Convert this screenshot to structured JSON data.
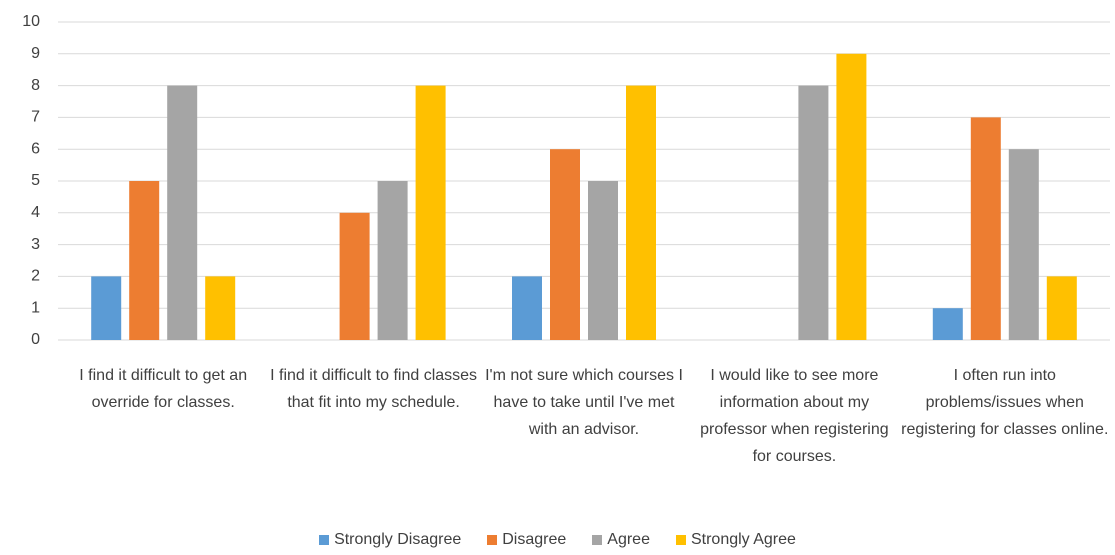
{
  "chart_data": {
    "type": "bar",
    "categories": [
      "I find it difficult to get an override for classes.",
      "I find it difficult to find classes that fit into my schedule.",
      "I'm not sure which courses I have to take until I've met with an advisor.",
      "I would like to see more information about my professor when registering for courses.",
      "I often run into problems/issues when registering for classes online."
    ],
    "series": [
      {
        "name": "Strongly Disagree",
        "color": "#5b9bd5",
        "values": [
          2,
          0,
          2,
          0,
          1
        ]
      },
      {
        "name": "Disagree",
        "color": "#ed7d31",
        "values": [
          5,
          4,
          6,
          0,
          7
        ]
      },
      {
        "name": "Agree",
        "color": "#a5a5a5",
        "values": [
          8,
          5,
          5,
          8,
          6
        ]
      },
      {
        "name": "Strongly Agree",
        "color": "#ffc000",
        "values": [
          2,
          8,
          8,
          9,
          2
        ]
      }
    ],
    "ylim": [
      0,
      10
    ],
    "yticks": [
      0,
      1,
      2,
      3,
      4,
      5,
      6,
      7,
      8,
      9,
      10
    ],
    "grid": true,
    "legend": "bottom"
  }
}
